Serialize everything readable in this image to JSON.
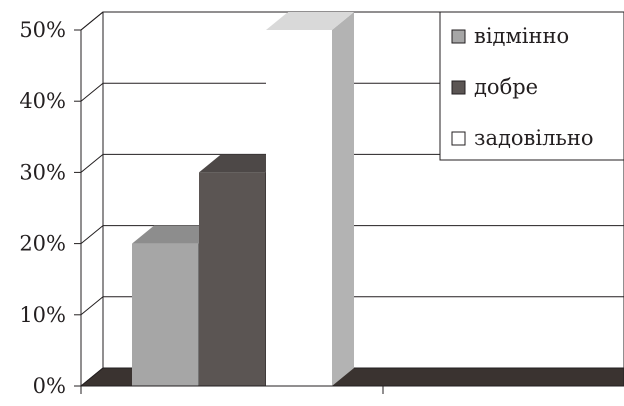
{
  "chart_data": {
    "type": "bar",
    "title": "",
    "xlabel": "",
    "ylabel": "",
    "ylim": [
      0,
      50
    ],
    "yticks": [
      "0%",
      "10%",
      "20%",
      "30%",
      "40%",
      "50%"
    ],
    "grid": true,
    "legend_position": "top-right",
    "series": [
      {
        "name": "відмінно",
        "values": [
          20
        ],
        "color": "#a6a6a6"
      },
      {
        "name": "добре",
        "values": [
          30
        ],
        "color": "#5b5553"
      },
      {
        "name": "задовільно",
        "values": [
          50
        ],
        "color": "#ffffff"
      }
    ]
  }
}
